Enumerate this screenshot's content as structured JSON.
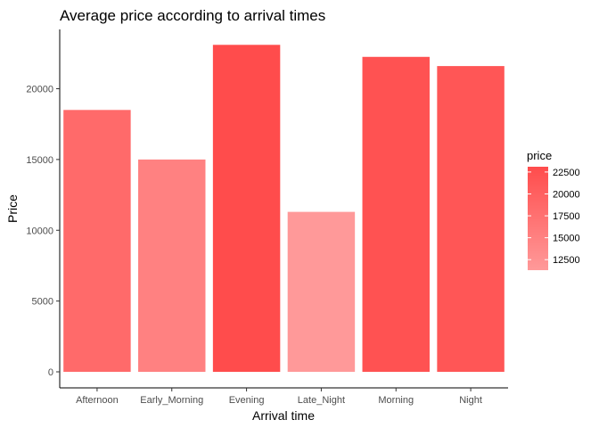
{
  "chart_data": {
    "type": "bar",
    "title": "Average price according to arrival times",
    "xlabel": "Arrival time",
    "ylabel": "Price",
    "categories": [
      "Afternoon",
      "Early_Morning",
      "Evening",
      "Late_Night",
      "Morning",
      "Night"
    ],
    "values": [
      18500,
      15000,
      23100,
      11300,
      22250,
      21600
    ],
    "ylim": [
      0,
      24000
    ],
    "yticks": [
      0,
      5000,
      10000,
      15000,
      20000
    ],
    "ytick_labels": [
      "0",
      "5000",
      "10000",
      "15000",
      "20000"
    ],
    "grid": false,
    "legend": {
      "title": "price",
      "placement": "right",
      "type": "colorbar",
      "range": [
        11300,
        23100
      ],
      "ticks": [
        12500,
        15000,
        17500,
        20000,
        22500
      ],
      "tick_labels": [
        "12500",
        "15000",
        "17500",
        "20000",
        "22500"
      ],
      "color_low": "#ff9999",
      "color_high": "#ff4c4c"
    }
  }
}
